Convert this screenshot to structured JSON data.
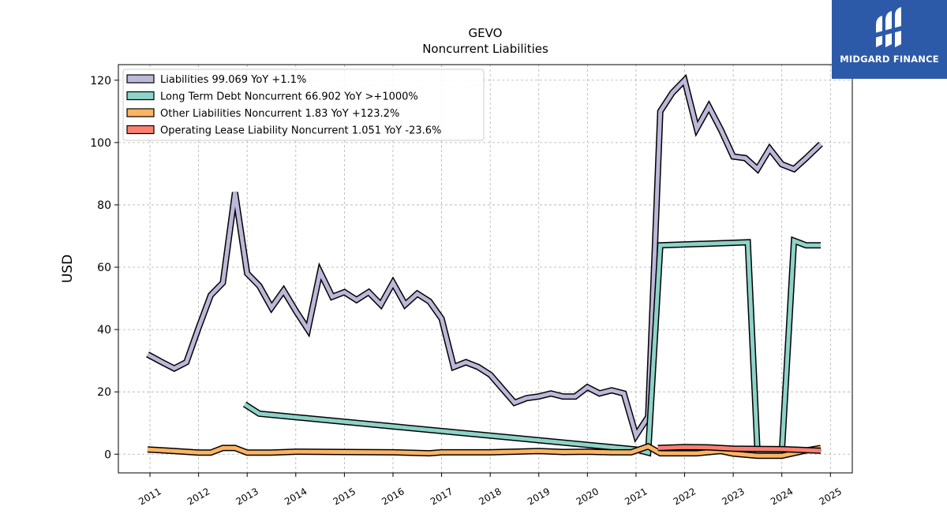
{
  "brand": {
    "name": "MIDGARD FINANCE",
    "logo_icon": "midgard-logo-icon",
    "color": "#2d5aa8"
  },
  "chart_data": {
    "type": "line",
    "title": "GEVO",
    "subtitle": "Noncurrent  Liabilities",
    "ylabel": "USD",
    "xlabel": "",
    "ylim": [
      -6,
      125
    ],
    "xlim": [
      2010.35,
      2025.45
    ],
    "yticks": [
      0,
      20,
      40,
      60,
      80,
      100,
      120
    ],
    "xticks": [
      "2011",
      "2012",
      "2013",
      "2014",
      "2015",
      "2016",
      "2017",
      "2018",
      "2019",
      "2020",
      "2021",
      "2022",
      "2023",
      "2024",
      "2025"
    ],
    "grid": true,
    "legend_position": "top-left",
    "series": [
      {
        "name": "Liabilities  99.069 YoY +1.1%",
        "color": "#bcb8d9",
        "points": [
          [
            2010.95,
            32
          ],
          [
            2011.25,
            29.5
          ],
          [
            2011.5,
            27.5
          ],
          [
            2011.75,
            29.5
          ],
          [
            2012.0,
            40.5
          ],
          [
            2012.25,
            51
          ],
          [
            2012.5,
            55
          ],
          [
            2012.75,
            84
          ],
          [
            2013.0,
            58
          ],
          [
            2013.25,
            54
          ],
          [
            2013.5,
            47
          ],
          [
            2013.75,
            52.5
          ],
          [
            2014.0,
            46
          ],
          [
            2014.25,
            40
          ],
          [
            2014.5,
            58.5
          ],
          [
            2014.75,
            50.5
          ],
          [
            2015.0,
            52
          ],
          [
            2015.25,
            49.5
          ],
          [
            2015.5,
            52
          ],
          [
            2015.75,
            48
          ],
          [
            2016.0,
            55
          ],
          [
            2016.25,
            48
          ],
          [
            2016.5,
            51.5
          ],
          [
            2016.75,
            49
          ],
          [
            2017.0,
            43.5
          ],
          [
            2017.25,
            28
          ],
          [
            2017.5,
            29.5
          ],
          [
            2017.75,
            28
          ],
          [
            2018.0,
            25.5
          ],
          [
            2018.25,
            21
          ],
          [
            2018.5,
            16.5
          ],
          [
            2018.75,
            18
          ],
          [
            2019.0,
            18.5
          ],
          [
            2019.25,
            19.5
          ],
          [
            2019.5,
            18.5
          ],
          [
            2019.75,
            18.5
          ],
          [
            2020.0,
            21.5
          ],
          [
            2020.25,
            19.5
          ],
          [
            2020.5,
            20.5
          ],
          [
            2020.75,
            19.5
          ],
          [
            2021.0,
            6
          ],
          [
            2021.25,
            12
          ],
          [
            2021.5,
            110
          ],
          [
            2021.75,
            116
          ],
          [
            2022.0,
            120
          ],
          [
            2022.25,
            104.5
          ],
          [
            2022.5,
            111.5
          ],
          [
            2022.75,
            104
          ],
          [
            2023.0,
            95.5
          ],
          [
            2023.25,
            95
          ],
          [
            2023.5,
            91.5
          ],
          [
            2023.75,
            98
          ],
          [
            2024.0,
            93
          ],
          [
            2024.25,
            91.5
          ],
          [
            2024.5,
            95
          ],
          [
            2024.8,
            99.5
          ]
        ]
      },
      {
        "name": "Long Term Debt Noncurrent  66.902 YoY >+1000%",
        "color": "#8dd3c7",
        "points": [
          [
            2012.95,
            16
          ],
          [
            2013.25,
            13
          ],
          [
            2021.0,
            1.5
          ],
          [
            2021.25,
            0.5
          ],
          [
            2021.5,
            67
          ],
          [
            2023.3,
            68
          ],
          [
            2023.5,
            0.5
          ],
          [
            2024.0,
            0.5
          ],
          [
            2024.25,
            68.5
          ],
          [
            2024.5,
            67
          ],
          [
            2024.8,
            67
          ]
        ]
      },
      {
        "name": "Other Liabilities Noncurrent  1.83 YoY +123.2%",
        "color": "#fdb462",
        "points": [
          [
            2010.95,
            1.5
          ],
          [
            2011.5,
            1
          ],
          [
            2012.0,
            0.5
          ],
          [
            2012.25,
            0.5
          ],
          [
            2012.5,
            2
          ],
          [
            2012.75,
            2
          ],
          [
            2013.0,
            0.5
          ],
          [
            2013.5,
            0.5
          ],
          [
            2014.0,
            0.8
          ],
          [
            2015.0,
            0.7
          ],
          [
            2016.0,
            0.6
          ],
          [
            2016.75,
            0.3
          ],
          [
            2017.0,
            0.6
          ],
          [
            2018.0,
            0.6
          ],
          [
            2018.5,
            0.8
          ],
          [
            2019.0,
            1.0
          ],
          [
            2019.5,
            0.7
          ],
          [
            2020.0,
            0.8
          ],
          [
            2020.5,
            0.6
          ],
          [
            2020.9,
            0.6
          ],
          [
            2021.25,
            2.5
          ],
          [
            2021.5,
            0.3
          ],
          [
            2022.0,
            0.3
          ],
          [
            2022.25,
            0.3
          ],
          [
            2022.75,
            1
          ],
          [
            2023.0,
            0.2
          ],
          [
            2023.5,
            -0.5
          ],
          [
            2024.0,
            -0.5
          ],
          [
            2024.5,
            1.2
          ],
          [
            2024.8,
            2
          ]
        ]
      },
      {
        "name": "Operating Lease Liability Noncurrent  1.051 YoY -23.6%",
        "color": "#fb8072",
        "points": [
          [
            2021.45,
            2
          ],
          [
            2022.0,
            2.3
          ],
          [
            2022.5,
            2.2
          ],
          [
            2023.0,
            1.8
          ],
          [
            2023.5,
            1.7
          ],
          [
            2024.0,
            1.6
          ],
          [
            2024.5,
            1.3
          ],
          [
            2024.8,
            1.1
          ]
        ]
      }
    ]
  }
}
